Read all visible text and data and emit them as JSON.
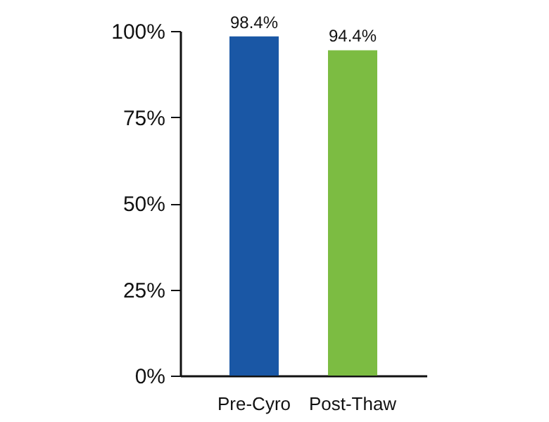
{
  "chart_data": {
    "type": "bar",
    "categories": [
      "Pre-Cyro",
      "Post-Thaw"
    ],
    "values": [
      98.4,
      94.4
    ],
    "colors": [
      "#1a57a5",
      "#7cbc42"
    ],
    "value_labels": [
      "98.4%",
      "94.4%"
    ],
    "ylim": [
      0,
      100
    ],
    "yticks": [
      {
        "value": 0,
        "label": "0%"
      },
      {
        "value": 25,
        "label": "25%"
      },
      {
        "value": 50,
        "label": "50%"
      },
      {
        "value": 75,
        "label": "75%"
      },
      {
        "value": 100,
        "label": "100%"
      }
    ],
    "grid": false,
    "legend": false
  }
}
